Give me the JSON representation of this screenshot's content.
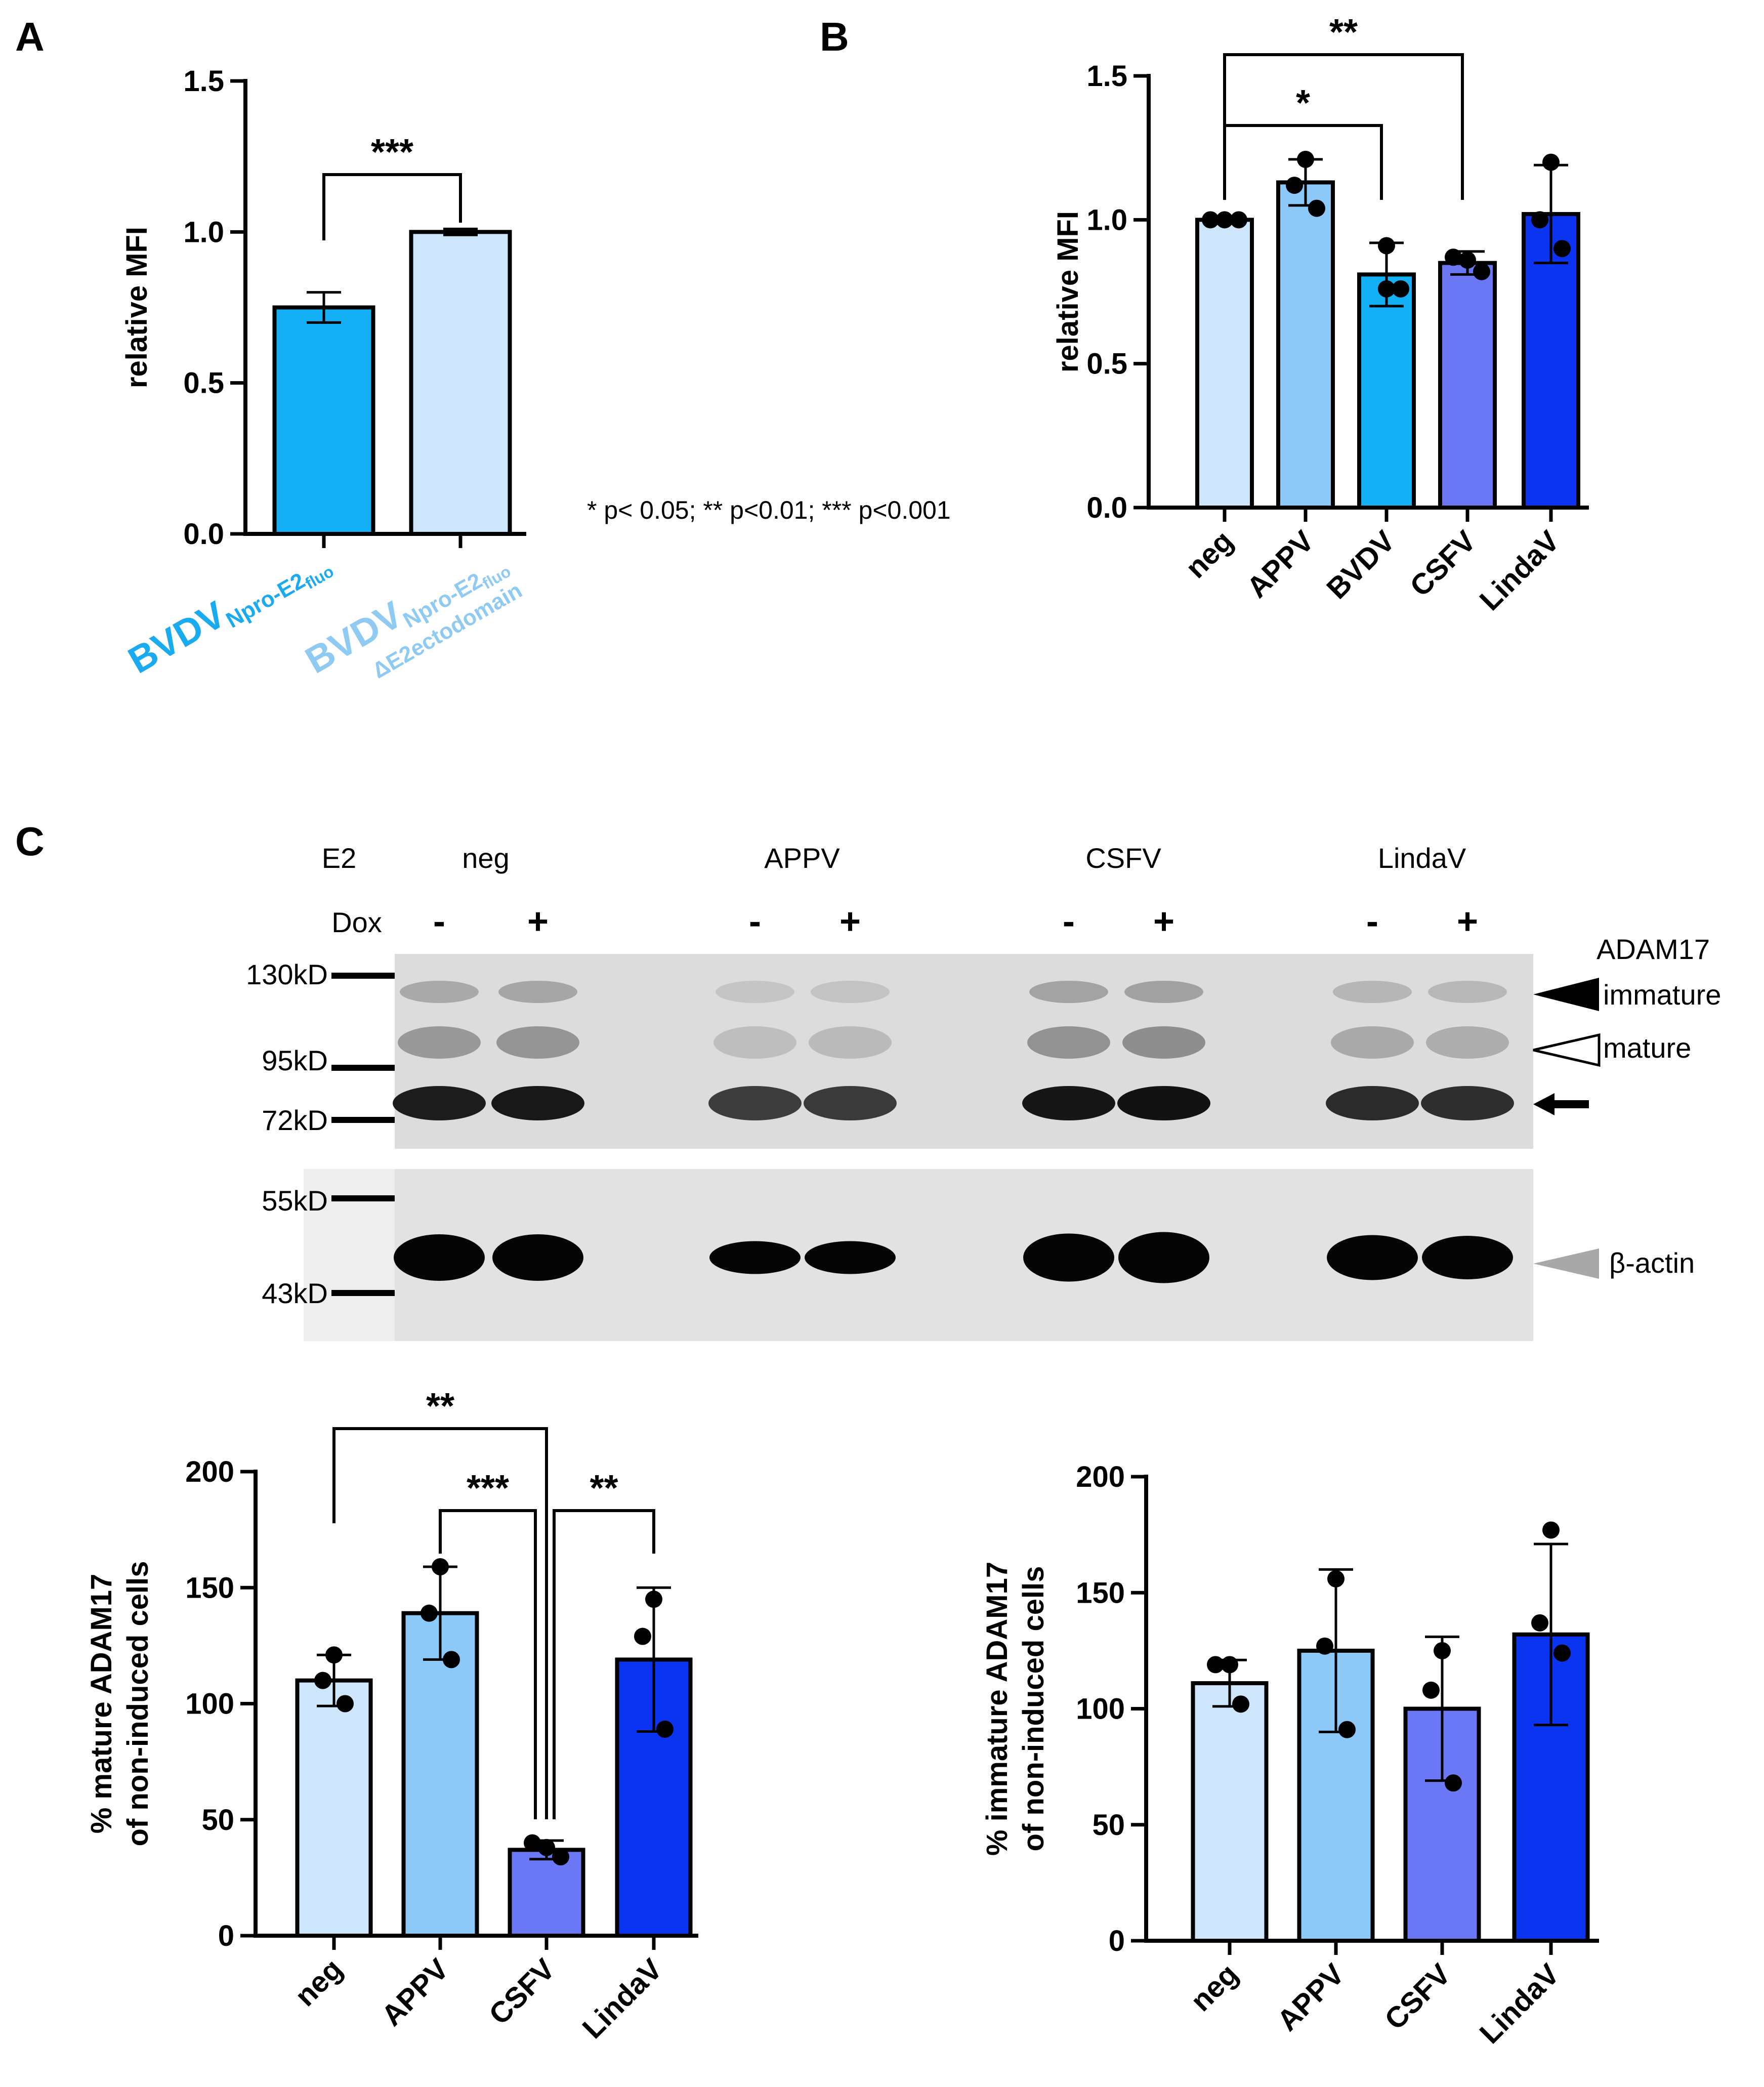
{
  "panel_labels": {
    "a": "A",
    "b": "B",
    "c": "C"
  },
  "significance_note": "* p< 0.05;  ** p<0.01; *** p<0.001",
  "colors": {
    "neg": "#cde6fb",
    "appv": "#8cc8f8",
    "bvdv": "#14b0f5",
    "csfv": "#6b78f5",
    "lindav": "#0a34f0",
    "bvdv_label": "#1aaaf0",
    "delta_label": "#8fcaf2"
  },
  "panel_a": {
    "category_labels": [
      {
        "main": "BVDV",
        "sub": "Npro-E2",
        "subsub": "fluo",
        "line2": ""
      },
      {
        "main": "BVDV",
        "sub": "Npro-E2",
        "subsub": "fluo",
        "line2": "ΔE2ectodomain"
      }
    ]
  },
  "blot": {
    "e2_label": "E2",
    "dox_label": "Dox",
    "groups": [
      "neg",
      "APPV",
      "CSFV",
      "LindaV"
    ],
    "dox_states": [
      "-",
      "+"
    ],
    "markers": [
      "130kD",
      "95kD",
      "72kD",
      "55kD",
      "43kD"
    ],
    "adam17_label": "ADAM17",
    "immature_label": "immature",
    "mature_label": "mature",
    "actin_label": "β-actin"
  },
  "chart_data": [
    {
      "panel": "A",
      "type": "bar",
      "categories": [
        "BVDVNpro-E2fluo",
        "BVDVNpro-E2fluo ΔE2ectodomain"
      ],
      "series": [
        {
          "values": [
            0.75,
            1.0
          ],
          "error": [
            0.05,
            0.01
          ]
        }
      ],
      "ylabel": "relative MFI",
      "ylim": [
        0,
        1.5
      ],
      "yticks": [
        "0.0",
        "0.5",
        "1.0",
        "1.5"
      ],
      "significance": [
        {
          "from": 0,
          "to": 1,
          "label": "***"
        }
      ]
    },
    {
      "panel": "B",
      "type": "bar",
      "categories": [
        "neg",
        "APPV",
        "BVDV",
        "CSFV",
        "LindaV"
      ],
      "series": [
        {
          "values": [
            1.0,
            1.13,
            0.81,
            0.85,
            1.02
          ],
          "error": [
            0.01,
            0.08,
            0.11,
            0.04,
            0.17
          ],
          "points": [
            [
              1.0,
              1.0,
              1.0
            ],
            [
              1.21,
              1.12,
              1.04
            ],
            [
              0.91,
              0.76,
              0.76
            ],
            [
              0.87,
              0.86,
              0.82
            ],
            [
              1.2,
              1.0,
              0.9
            ]
          ]
        }
      ],
      "ylabel": "relative MFI",
      "ylim": [
        0,
        1.5
      ],
      "yticks": [
        "0.0",
        "0.5",
        "1.0",
        "1.5"
      ],
      "significance": [
        {
          "from": 0,
          "to": 2,
          "label": "*"
        },
        {
          "from": 0,
          "to": 3,
          "label": "**"
        }
      ]
    },
    {
      "panel": "C-left",
      "type": "bar",
      "categories": [
        "neg",
        "APPV",
        "CSFV",
        "LindaV"
      ],
      "series": [
        {
          "values": [
            110,
            139,
            37,
            119
          ],
          "error": [
            11,
            20,
            4,
            31
          ],
          "points": [
            [
              121,
              110,
              100
            ],
            [
              159,
              139,
              119
            ],
            [
              40,
              38,
              34
            ],
            [
              145,
              129,
              89
            ]
          ]
        }
      ],
      "ylabel": "% mature ADAM17 of non-induced cells",
      "ylim": [
        0,
        200
      ],
      "yticks": [
        "0",
        "50",
        "100",
        "150",
        "200"
      ],
      "significance": [
        {
          "from": 0,
          "to": 2,
          "label": "**"
        },
        {
          "from": 1,
          "to": 2,
          "label": "***"
        },
        {
          "from": 2,
          "to": 3,
          "label": "**"
        }
      ]
    },
    {
      "panel": "C-right",
      "type": "bar",
      "categories": [
        "neg",
        "APPV",
        "CSFV",
        "LindaV"
      ],
      "series": [
        {
          "values": [
            111,
            125,
            100,
            132
          ],
          "error": [
            10,
            35,
            31,
            39
          ],
          "points": [
            [
              119,
              119,
              102
            ],
            [
              156,
              127,
              91
            ],
            [
              125,
              108,
              68
            ],
            [
              177,
              137,
              124
            ]
          ]
        }
      ],
      "ylabel": "% immature ADAM17 of non-induced cells",
      "ylim": [
        0,
        200
      ],
      "yticks": [
        "0",
        "50",
        "100",
        "150",
        "200"
      ],
      "significance": []
    }
  ]
}
